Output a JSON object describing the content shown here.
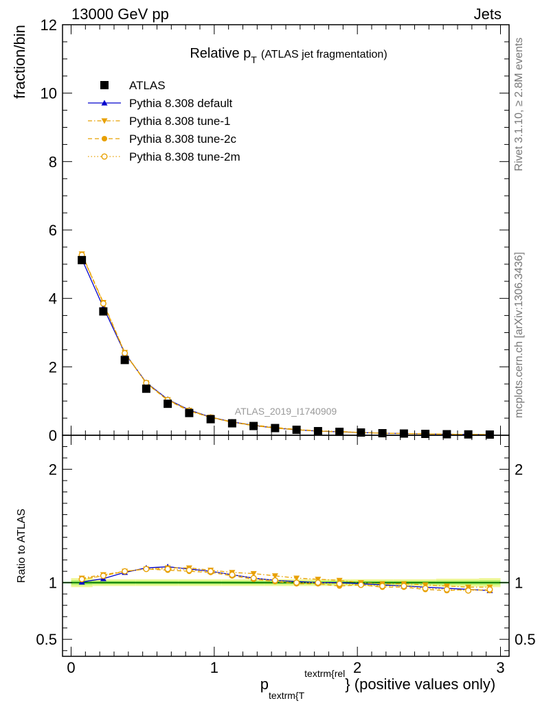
{
  "header": {
    "energy_label": "13000 GeV pp",
    "process_label": "Jets"
  },
  "side_labels": {
    "rivet": "Rivet 3.1.10, ≥ 2.8M events",
    "mcplots": "mcplots.cern.ch [arXiv:1306.3436]"
  },
  "chart_data": {
    "type": "scatter",
    "title": "Relative p",
    "title_sub": "T",
    "title_suffix": "(ATLAS jet fragmentation)",
    "watermark": "ATLAS_2019_I1740909",
    "xlabel_main": "p",
    "xlabel_sub": "textrm{T",
    "xlabel_sup": "textrm{rel",
    "xlabel_tail": "} (positive values only)",
    "ylabel": "fraction/bin",
    "ratio_ylabel": "Ratio to ATLAS",
    "xlim": [
      -0.06,
      3.06
    ],
    "ylim": [
      0,
      12
    ],
    "ratio_ylim": [
      0.35,
      2.3
    ],
    "x_ticks": [
      "0",
      "1",
      "2",
      "3"
    ],
    "x_tick_values": [
      0,
      1,
      2,
      3
    ],
    "y_ticks": [
      "0",
      "2",
      "4",
      "6",
      "8",
      "10",
      "12"
    ],
    "y_tick_values": [
      0,
      2,
      4,
      6,
      8,
      10,
      12
    ],
    "ratio_ticks": [
      "0.5",
      "1",
      "2"
    ],
    "ratio_tick_values": [
      0.5,
      1,
      2
    ],
    "legend_position": "top-left",
    "x": [
      0.075,
      0.225,
      0.375,
      0.525,
      0.675,
      0.825,
      0.975,
      1.125,
      1.275,
      1.425,
      1.575,
      1.725,
      1.875,
      2.025,
      2.175,
      2.325,
      2.475,
      2.625,
      2.775,
      2.925
    ],
    "series": [
      {
        "name": "ATLAS",
        "color": "#000000",
        "marker": "square",
        "values": [
          5.12,
          3.62,
          2.2,
          1.36,
          0.92,
          0.65,
          0.47,
          0.35,
          0.27,
          0.21,
          0.16,
          0.12,
          0.1,
          0.08,
          0.06,
          0.05,
          0.04,
          0.03,
          0.025,
          0.02
        ],
        "ratio": [
          1,
          1,
          1,
          1,
          1,
          1,
          1,
          1,
          1,
          1,
          1,
          1,
          1,
          1,
          1,
          1,
          1,
          1,
          1,
          1
        ],
        "band_halfwidth": [
          0.04,
          0.03,
          0.03,
          0.03,
          0.03,
          0.03,
          0.03,
          0.03,
          0.03,
          0.03,
          0.03,
          0.03,
          0.03,
          0.03,
          0.03,
          0.03,
          0.03,
          0.035,
          0.035,
          0.04
        ]
      },
      {
        "name": "Pythia 8.308 default",
        "color": "#0000cc",
        "marker": "triangle-up",
        "line": "solid",
        "values": [
          5.15,
          3.74,
          2.4,
          1.54,
          1.05,
          0.74,
          0.53,
          0.39,
          0.29,
          0.21,
          0.16,
          0.12,
          0.1,
          0.08,
          0.06,
          0.05,
          0.04,
          0.03,
          0.025,
          0.02
        ],
        "ratio": [
          1.005,
          1.035,
          1.09,
          1.13,
          1.14,
          1.12,
          1.1,
          1.07,
          1.04,
          1.02,
          1.01,
          1.0,
          1.0,
          0.99,
          0.98,
          0.97,
          0.96,
          0.95,
          0.94,
          0.93
        ]
      },
      {
        "name": "Pythia 8.308 tune-1",
        "color": "#e8a000",
        "marker": "triangle-down",
        "line": "dashdot",
        "values": [
          5.3,
          3.88,
          2.42,
          1.53,
          1.04,
          0.73,
          0.53,
          0.39,
          0.3,
          0.23,
          0.17,
          0.13,
          0.11,
          0.08,
          0.06,
          0.05,
          0.04,
          0.03,
          0.025,
          0.02
        ],
        "ratio": [
          1.04,
          1.07,
          1.1,
          1.12,
          1.13,
          1.13,
          1.11,
          1.09,
          1.08,
          1.06,
          1.04,
          1.03,
          1.02,
          1.0,
          0.99,
          0.99,
          0.98,
          0.97,
          0.96,
          0.96
        ]
      },
      {
        "name": "Pythia 8.308 tune-2c",
        "color": "#e8a000",
        "marker": "circle",
        "line": "dashed",
        "values": [
          5.28,
          3.86,
          2.4,
          1.52,
          1.02,
          0.71,
          0.52,
          0.38,
          0.28,
          0.21,
          0.16,
          0.12,
          0.1,
          0.08,
          0.06,
          0.05,
          0.04,
          0.03,
          0.025,
          0.02
        ],
        "ratio": [
          1.03,
          1.06,
          1.1,
          1.12,
          1.11,
          1.1,
          1.09,
          1.06,
          1.03,
          1.01,
          0.99,
          0.99,
          0.97,
          0.98,
          0.96,
          0.96,
          0.94,
          0.93,
          0.94,
          0.93
        ]
      },
      {
        "name": "Pythia 8.308 tune-2m",
        "color": "#e8a000",
        "marker": "circle-open",
        "line": "dotted",
        "values": [
          5.27,
          3.85,
          2.4,
          1.53,
          1.03,
          0.72,
          0.52,
          0.38,
          0.29,
          0.21,
          0.16,
          0.12,
          0.1,
          0.08,
          0.06,
          0.05,
          0.04,
          0.03,
          0.025,
          0.02
        ],
        "ratio": [
          1.03,
          1.06,
          1.1,
          1.12,
          1.12,
          1.11,
          1.1,
          1.07,
          1.04,
          1.02,
          1.0,
          1.0,
          0.99,
          0.98,
          0.97,
          0.97,
          0.95,
          0.94,
          0.93,
          0.94
        ]
      }
    ]
  },
  "colors": {
    "reference_line": "#007700",
    "band_inner": "#b7f26e",
    "band_outer": "#f0f79a",
    "side_text": "#777777",
    "watermark": "#999999"
  }
}
